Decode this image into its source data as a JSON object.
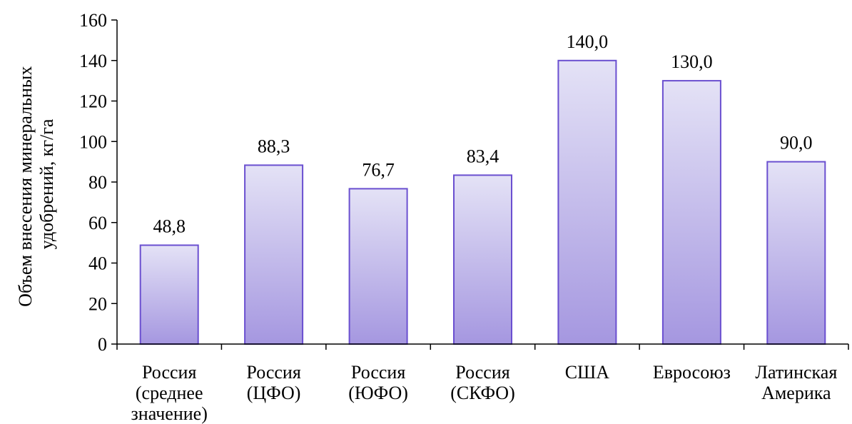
{
  "chart_data": {
    "type": "bar",
    "categories": [
      [
        "Россия",
        "(среднее",
        "значение)"
      ],
      [
        "Россия",
        "(ЦФО)"
      ],
      [
        "Россия",
        "(ЮФО)"
      ],
      [
        "Россия",
        "(СКФО)"
      ],
      [
        "США"
      ],
      [
        "Евросоюз"
      ],
      [
        "Латинская",
        "Америка"
      ]
    ],
    "values": [
      48.8,
      88.3,
      76.7,
      83.4,
      140.0,
      130.0,
      90.0
    ],
    "data_labels": [
      "48,8",
      "88,3",
      "76,7",
      "83,4",
      "140,0",
      "130,0",
      "90,0"
    ],
    "title": "",
    "xlabel": "",
    "ylabel": [
      "Объем внесения минеральных",
      "удобрений, кг/га"
    ],
    "ylim": [
      0,
      160
    ],
    "yticks": [
      0,
      20,
      40,
      60,
      80,
      100,
      120,
      140,
      160
    ],
    "grid": false,
    "legend": "none",
    "colors": {
      "bar_top": "#e4e2f6",
      "bar_bottom": "#a597e0",
      "bar_border": "#6a4fd0",
      "axis": "#000000"
    }
  }
}
